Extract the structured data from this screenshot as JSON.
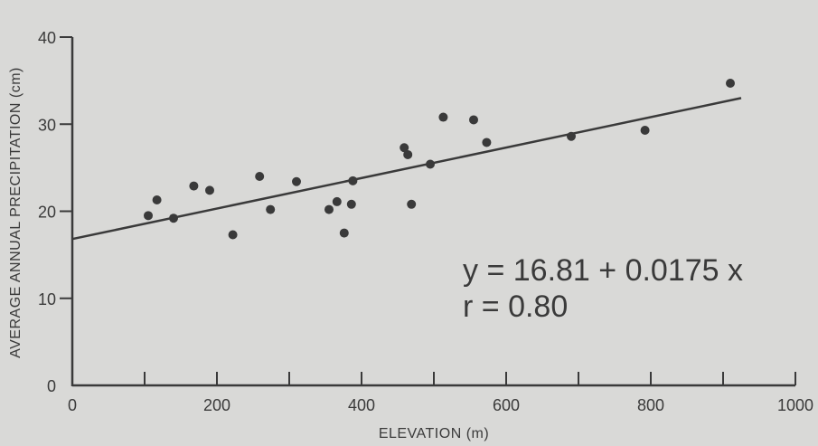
{
  "chart_data": {
    "type": "scatter",
    "xlabel": "ELEVATION (m)",
    "ylabel": "AVERAGE ANNUAL PRECIPITATION (cm)",
    "xlim": [
      0,
      1000
    ],
    "ylim": [
      0,
      40
    ],
    "x_ticks": [
      0,
      200,
      400,
      600,
      800,
      1000
    ],
    "x_tick_labels": [
      "0",
      "200",
      "400",
      "600",
      "800",
      "1000"
    ],
    "x_minor_ticks": [
      100,
      300,
      500,
      700,
      900
    ],
    "y_ticks": [
      0,
      10,
      20,
      30,
      40
    ],
    "y_tick_labels": [
      "0",
      "10",
      "20",
      "30",
      "40"
    ],
    "grid": false,
    "points": [
      {
        "x": 105,
        "y": 19.5
      },
      {
        "x": 117,
        "y": 21.3
      },
      {
        "x": 140,
        "y": 19.2
      },
      {
        "x": 168,
        "y": 22.9
      },
      {
        "x": 190,
        "y": 22.4
      },
      {
        "x": 222,
        "y": 17.3
      },
      {
        "x": 259,
        "y": 24.0
      },
      {
        "x": 274,
        "y": 20.2
      },
      {
        "x": 310,
        "y": 23.4
      },
      {
        "x": 355,
        "y": 20.2
      },
      {
        "x": 366,
        "y": 21.1
      },
      {
        "x": 376,
        "y": 17.5
      },
      {
        "x": 386,
        "y": 20.8
      },
      {
        "x": 388,
        "y": 23.5
      },
      {
        "x": 459,
        "y": 27.3
      },
      {
        "x": 464,
        "y": 26.5
      },
      {
        "x": 469,
        "y": 20.8
      },
      {
        "x": 495,
        "y": 25.4
      },
      {
        "x": 513,
        "y": 30.8
      },
      {
        "x": 555,
        "y": 30.5
      },
      {
        "x": 573,
        "y": 27.9
      },
      {
        "x": 690,
        "y": 28.6
      },
      {
        "x": 792,
        "y": 29.3
      },
      {
        "x": 910,
        "y": 34.7
      }
    ],
    "fit_line": {
      "intercept": 16.81,
      "slope": 0.0175,
      "x_range": [
        0,
        925
      ]
    },
    "annotation": {
      "equation": "y = 16.81 + 0.0175 x",
      "r": "r = 0.80"
    },
    "colors": {
      "background": "#d9d9d7",
      "ink": "#3a3a3a"
    }
  }
}
